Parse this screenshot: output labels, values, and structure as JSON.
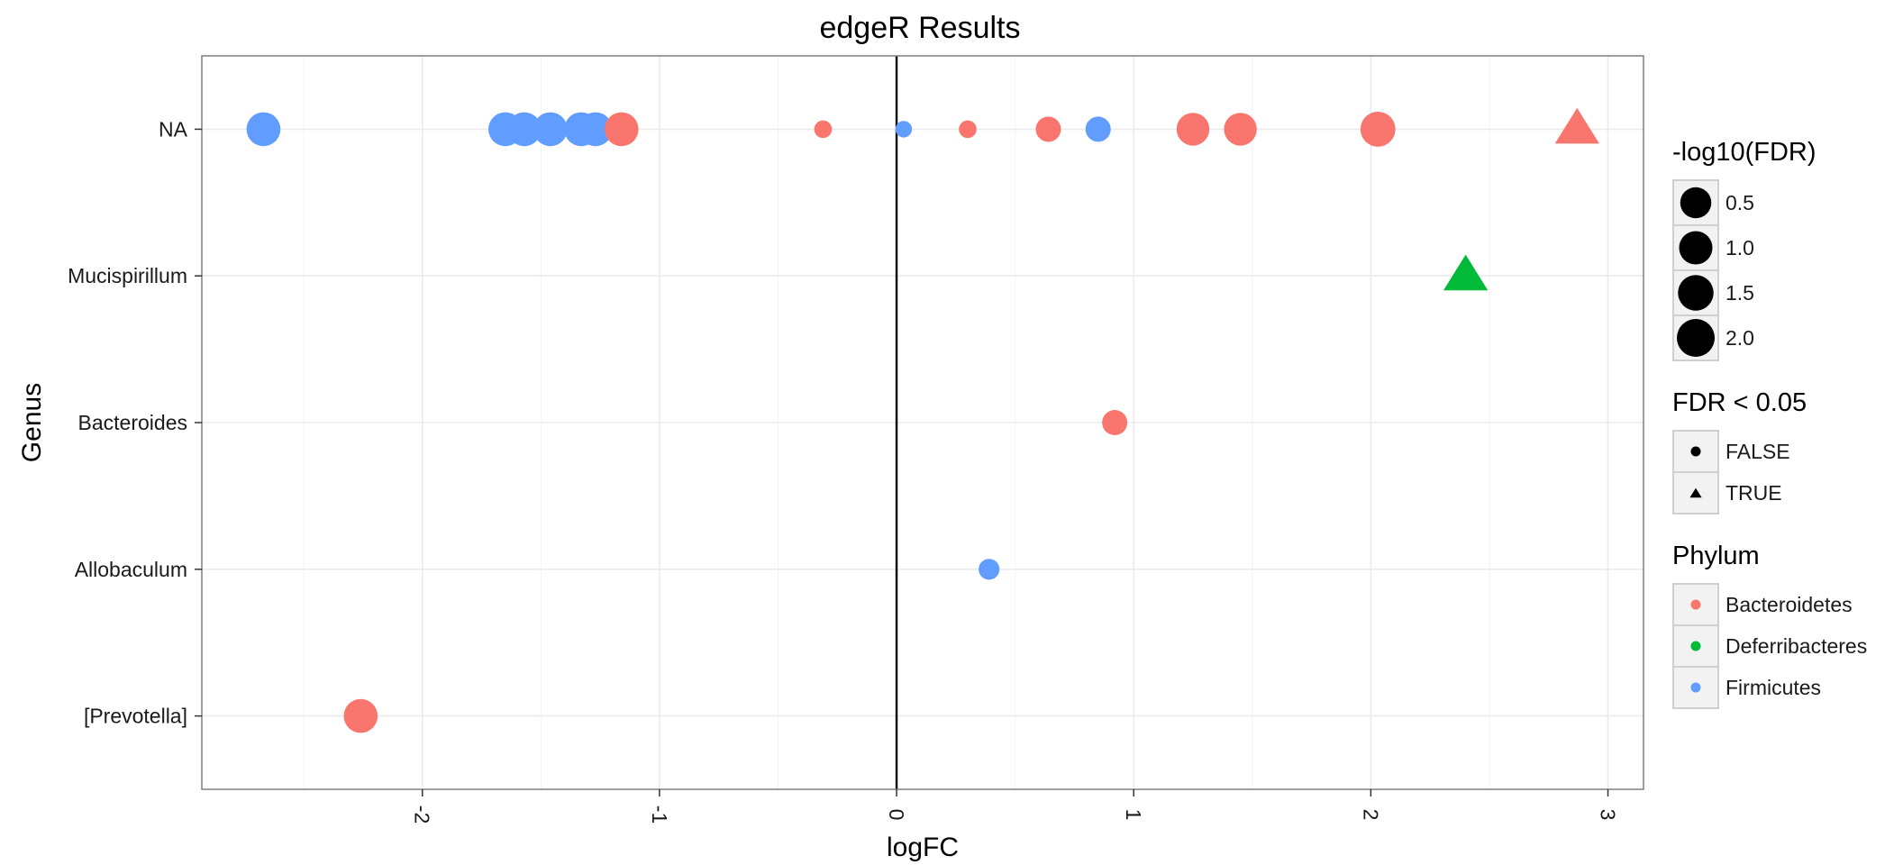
{
  "colors": {
    "Bacteroidetes": "#F8766D",
    "Deferribacteres": "#00BA38",
    "Firmicutes": "#619CFF"
  },
  "chart_data": {
    "type": "scatter",
    "title": "edgeR Results",
    "xlabel": "logFC",
    "ylabel": "Genus",
    "xlim": [
      -2.93,
      3.15
    ],
    "x_ticks": [
      -2,
      -1,
      0,
      1,
      2,
      3
    ],
    "x_tick_labels": [
      "-2",
      "-1",
      "0",
      "1",
      "2",
      "3"
    ],
    "categories": [
      "NA",
      "Mucispirillum",
      "Bacteroides",
      "Allobaculum",
      "[Prevotella]"
    ],
    "vline_at": 0,
    "grid": true,
    "points": [
      {
        "genus": "NA",
        "logFC": -2.67,
        "phylum": "Firmicutes",
        "neglog10FDR": 1.8,
        "fdr_sig": false
      },
      {
        "genus": "NA",
        "logFC": -1.65,
        "phylum": "Firmicutes",
        "neglog10FDR": 1.8,
        "fdr_sig": false
      },
      {
        "genus": "NA",
        "logFC": -1.57,
        "phylum": "Firmicutes",
        "neglog10FDR": 1.8,
        "fdr_sig": false
      },
      {
        "genus": "NA",
        "logFC": -1.46,
        "phylum": "Firmicutes",
        "neglog10FDR": 1.8,
        "fdr_sig": false
      },
      {
        "genus": "NA",
        "logFC": -1.33,
        "phylum": "Firmicutes",
        "neglog10FDR": 1.8,
        "fdr_sig": false
      },
      {
        "genus": "NA",
        "logFC": -1.27,
        "phylum": "Firmicutes",
        "neglog10FDR": 1.8,
        "fdr_sig": false
      },
      {
        "genus": "NA",
        "logFC": -1.16,
        "phylum": "Bacteroidetes",
        "neglog10FDR": 1.8,
        "fdr_sig": false
      },
      {
        "genus": "NA",
        "logFC": -0.31,
        "phylum": "Bacteroidetes",
        "neglog10FDR": 0.3,
        "fdr_sig": false
      },
      {
        "genus": "NA",
        "logFC": 0.03,
        "phylum": "Firmicutes",
        "neglog10FDR": 0.2,
        "fdr_sig": false
      },
      {
        "genus": "NA",
        "logFC": 0.3,
        "phylum": "Bacteroidetes",
        "neglog10FDR": 0.3,
        "fdr_sig": false
      },
      {
        "genus": "NA",
        "logFC": 0.64,
        "phylum": "Bacteroidetes",
        "neglog10FDR": 1.0,
        "fdr_sig": false
      },
      {
        "genus": "NA",
        "logFC": 0.85,
        "phylum": "Firmicutes",
        "neglog10FDR": 1.0,
        "fdr_sig": false
      },
      {
        "genus": "NA",
        "logFC": 1.25,
        "phylum": "Bacteroidetes",
        "neglog10FDR": 1.7,
        "fdr_sig": false
      },
      {
        "genus": "NA",
        "logFC": 1.45,
        "phylum": "Bacteroidetes",
        "neglog10FDR": 1.7,
        "fdr_sig": false
      },
      {
        "genus": "NA",
        "logFC": 2.03,
        "phylum": "Bacteroidetes",
        "neglog10FDR": 1.9,
        "fdr_sig": false
      },
      {
        "genus": "NA",
        "logFC": 2.87,
        "phylum": "Bacteroidetes",
        "neglog10FDR": 2.4,
        "fdr_sig": true
      },
      {
        "genus": "Mucispirillum",
        "logFC": 2.4,
        "phylum": "Deferribacteres",
        "neglog10FDR": 2.4,
        "fdr_sig": true
      },
      {
        "genus": "Bacteroides",
        "logFC": 0.92,
        "phylum": "Bacteroidetes",
        "neglog10FDR": 1.0,
        "fdr_sig": false
      },
      {
        "genus": "Allobaculum",
        "logFC": 0.39,
        "phylum": "Firmicutes",
        "neglog10FDR": 0.6,
        "fdr_sig": false
      },
      {
        "genus": "[Prevotella]",
        "logFC": -2.26,
        "phylum": "Bacteroidetes",
        "neglog10FDR": 1.8,
        "fdr_sig": false
      }
    ],
    "legends": [
      {
        "title": "-log10(FDR)",
        "kind": "size",
        "items": [
          {
            "label": "0.5",
            "value": 0.5
          },
          {
            "label": "1.0",
            "value": 1.0
          },
          {
            "label": "1.5",
            "value": 1.5
          },
          {
            "label": "2.0",
            "value": 2.0
          }
        ]
      },
      {
        "title": "FDR < 0.05",
        "kind": "shape",
        "items": [
          {
            "label": "FALSE",
            "shape": "circle"
          },
          {
            "label": "TRUE",
            "shape": "triangle"
          }
        ]
      },
      {
        "title": "Phylum",
        "kind": "color",
        "items": [
          {
            "label": "Bacteroidetes"
          },
          {
            "label": "Deferribacteres"
          },
          {
            "label": "Firmicutes"
          }
        ]
      }
    ]
  }
}
